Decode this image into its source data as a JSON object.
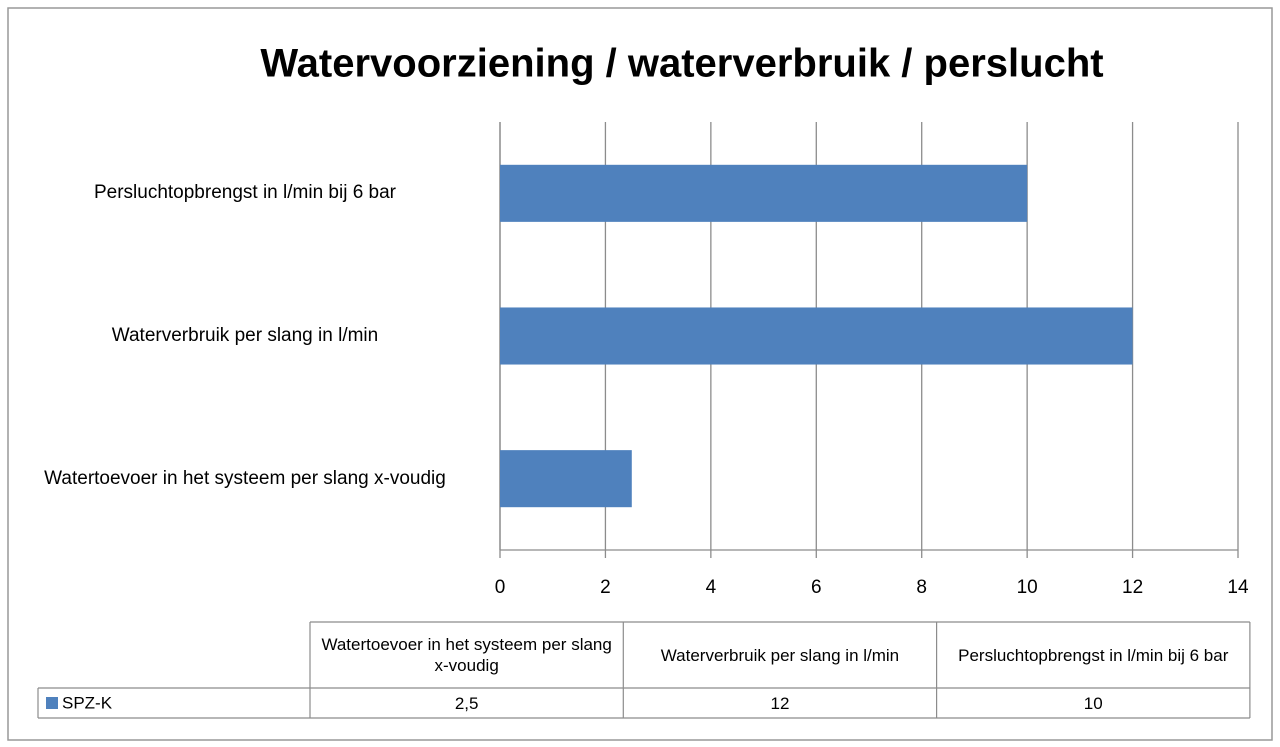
{
  "chart_data": {
    "type": "bar",
    "orientation": "horizontal",
    "title": "Watervoorziening / waterverbruik / perslucht",
    "categories": [
      "Watertoevoer in het systeem per slang x-voudig",
      "Waterverbruik per slang in l/min",
      "Persluchtopbrengst in l/min bij 6 bar"
    ],
    "series": [
      {
        "name": "SPZ-K",
        "color": "#4f81bd",
        "values": [
          2.5,
          12,
          10
        ],
        "value_labels": [
          "2,5",
          "12",
          "10"
        ]
      }
    ],
    "xlim": [
      0,
      14
    ],
    "xticks": [
      0,
      2,
      4,
      6,
      8,
      10,
      12,
      14
    ],
    "grid": true,
    "data_table": true
  }
}
